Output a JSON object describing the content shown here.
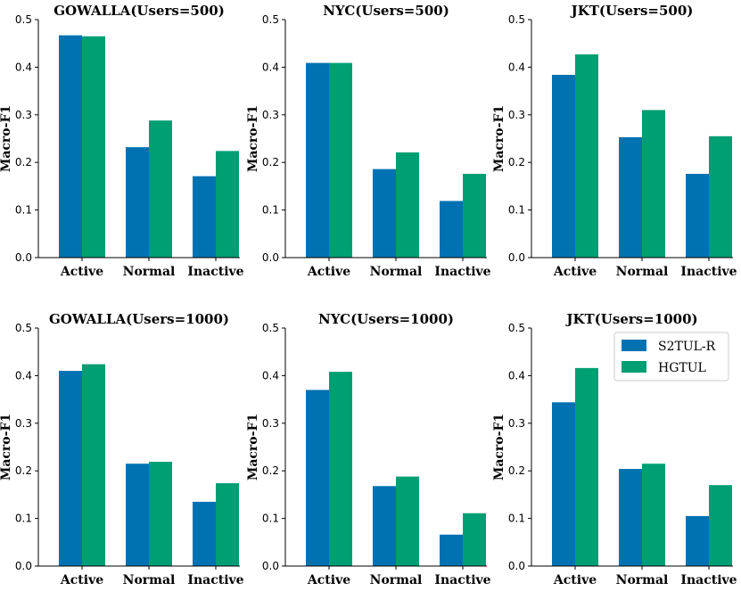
{
  "colors": {
    "s2tul": "#0072b2",
    "hgtul": "#009e73"
  },
  "legend": {
    "items": [
      {
        "label": "S2TUL-R",
        "color": "#0072b2"
      },
      {
        "label": "HGTUL",
        "color": "#009e73"
      }
    ]
  },
  "chart_data": [
    {
      "type": "bar",
      "title": "GOWALLA(Users=500)",
      "ylabel": "Macro-F1",
      "ylim": [
        0,
        0.5
      ],
      "yticks": [
        "0.0",
        "0.1",
        "0.2",
        "0.3",
        "0.4",
        "0.5"
      ],
      "categories": [
        "Active",
        "Normal",
        "Inactive"
      ],
      "series": [
        {
          "name": "S2TUL-R",
          "values": [
            0.467,
            0.232,
            0.171
          ]
        },
        {
          "name": "HGTUL",
          "values": [
            0.465,
            0.288,
            0.224
          ]
        }
      ]
    },
    {
      "type": "bar",
      "title": "NYC(Users=500)",
      "ylabel": "Macro-F1",
      "ylim": [
        0,
        0.5
      ],
      "yticks": [
        "0.0",
        "0.1",
        "0.2",
        "0.3",
        "0.4",
        "0.5"
      ],
      "categories": [
        "Active",
        "Normal",
        "Inactive"
      ],
      "series": [
        {
          "name": "S2TUL-R",
          "values": [
            0.409,
            0.186,
            0.119
          ]
        },
        {
          "name": "HGTUL",
          "values": [
            0.409,
            0.221,
            0.176
          ]
        }
      ]
    },
    {
      "type": "bar",
      "title": "JKT(Users=500)",
      "ylabel": "Macro-F1",
      "ylim": [
        0,
        0.5
      ],
      "yticks": [
        "0.0",
        "0.1",
        "0.2",
        "0.3",
        "0.4",
        "0.5"
      ],
      "categories": [
        "Active",
        "Normal",
        "Inactive"
      ],
      "series": [
        {
          "name": "S2TUL-R",
          "values": [
            0.384,
            0.253,
            0.176
          ]
        },
        {
          "name": "HGTUL",
          "values": [
            0.427,
            0.31,
            0.255
          ]
        }
      ]
    },
    {
      "type": "bar",
      "title": "GOWALLA(Users=1000)",
      "ylabel": "Macro-F1",
      "ylim": [
        0,
        0.5
      ],
      "yticks": [
        "0.0",
        "0.1",
        "0.2",
        "0.3",
        "0.4",
        "0.5"
      ],
      "categories": [
        "Active",
        "Normal",
        "Inactive"
      ],
      "series": [
        {
          "name": "S2TUL-R",
          "values": [
            0.41,
            0.215,
            0.135
          ]
        },
        {
          "name": "HGTUL",
          "values": [
            0.424,
            0.219,
            0.174
          ]
        }
      ]
    },
    {
      "type": "bar",
      "title": "NYC(Users=1000)",
      "ylabel": "Macro-F1",
      "ylim": [
        0,
        0.5
      ],
      "yticks": [
        "0.0",
        "0.1",
        "0.2",
        "0.3",
        "0.4",
        "0.5"
      ],
      "categories": [
        "Active",
        "Normal",
        "Inactive"
      ],
      "series": [
        {
          "name": "S2TUL-R",
          "values": [
            0.37,
            0.168,
            0.066
          ]
        },
        {
          "name": "HGTUL",
          "values": [
            0.408,
            0.188,
            0.111
          ]
        }
      ]
    },
    {
      "type": "bar",
      "title": "JKT(Users=1000)",
      "ylabel": "Macro-F1",
      "ylim": [
        0,
        0.5
      ],
      "yticks": [
        "0.0",
        "0.1",
        "0.2",
        "0.3",
        "0.4",
        "0.5"
      ],
      "categories": [
        "Active",
        "Normal",
        "Inactive"
      ],
      "series": [
        {
          "name": "S2TUL-R",
          "values": [
            0.344,
            0.204,
            0.105
          ]
        },
        {
          "name": "HGTUL",
          "values": [
            0.416,
            0.215,
            0.17
          ]
        }
      ]
    }
  ]
}
